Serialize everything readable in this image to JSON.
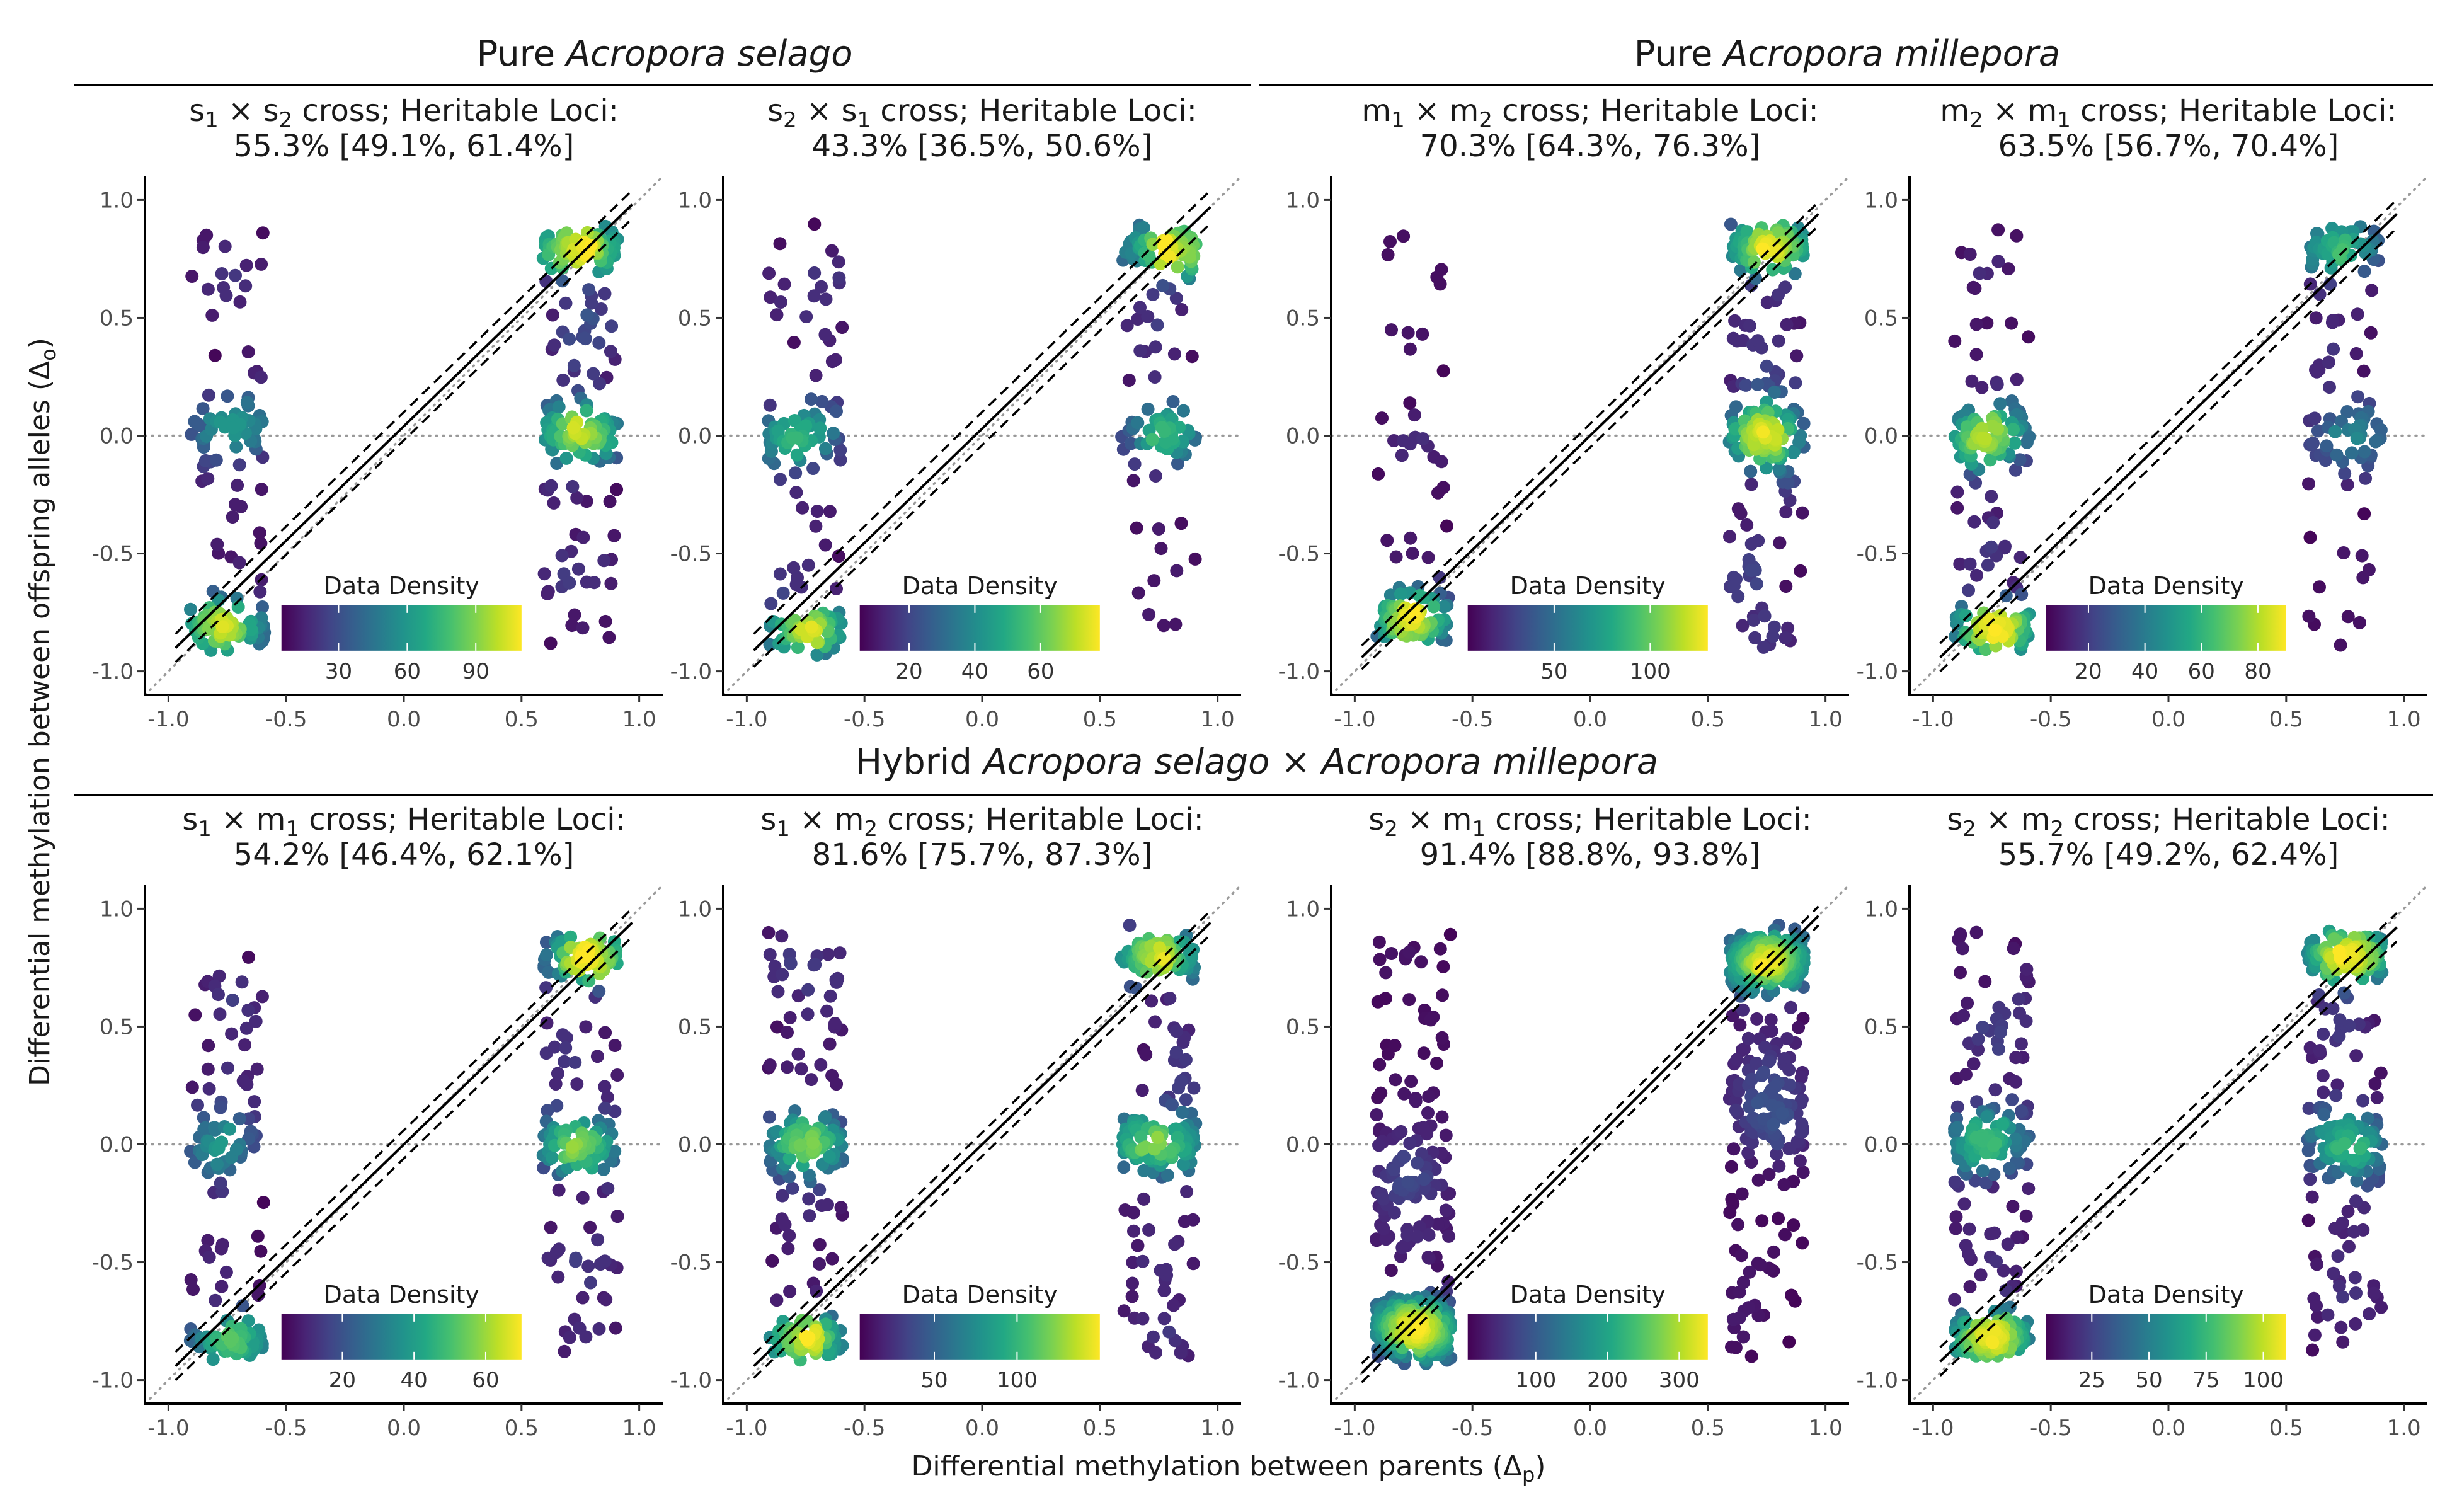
{
  "figure": {
    "group_titles": [
      {
        "prefix": "Pure ",
        "italic": "Acropora selago",
        "suffix": ""
      },
      {
        "prefix": "Pure ",
        "italic": "Acropora millepora",
        "suffix": ""
      },
      {
        "prefix": "Hybrid ",
        "italic": "Acropora selago",
        "middle": " × ",
        "italic2": "Acropora millepora"
      }
    ],
    "xlabel": {
      "main": "Differential methylation between parents (Δ",
      "sub": "p",
      "close": ")"
    },
    "ylabel": {
      "main": "Differential methylation between offspring alleles (Δ",
      "sub": "o",
      "close": ")"
    },
    "legend_title": "Data Density",
    "colormap": "viridis",
    "colors": {
      "line": "#000000",
      "reference": "#9a9a9a",
      "axis": "#000000",
      "text": "#1a1a1a"
    }
  },
  "chart_data": [
    {
      "type": "scatter",
      "title_line1": {
        "a": "s",
        "a_sub": "1",
        "b": "s",
        "b_sub": "2",
        "rest": " cross; Heritable Loci:"
      },
      "title_line2": "55.3% [49.1%, 61.4%]",
      "xlim": [
        -1.1,
        1.1
      ],
      "ylim": [
        -1.1,
        1.1
      ],
      "x_ticks": [
        -1.0,
        -0.5,
        0.0,
        0.5,
        1.0
      ],
      "y_ticks": [
        -1.0,
        -0.5,
        0.0,
        0.5,
        1.0
      ],
      "fit": {
        "slope": 0.97,
        "intercept": 0.04,
        "ci_offset": 0.06
      },
      "density_range": [
        5,
        110
      ],
      "density_ticks": [
        "30",
        "60",
        "90"
      ],
      "density_tick_values": [
        30,
        60,
        90
      ],
      "clusters": {
        "left": {
          "x_center": -0.75,
          "x_spread": 0.22,
          "n": 160,
          "y_pattern": "mixed",
          "peak": "low"
        },
        "right": {
          "x_center": 0.75,
          "x_spread": 0.22,
          "n": 220,
          "y_pattern": "mixed",
          "peak": "high"
        }
      }
    },
    {
      "type": "scatter",
      "title_line1": {
        "a": "s",
        "a_sub": "2",
        "b": "s",
        "b_sub": "1",
        "rest": " cross; Heritable Loci:"
      },
      "title_line2": "43.3% [36.5%, 50.6%]",
      "xlim": [
        -1.1,
        1.1
      ],
      "ylim": [
        -1.1,
        1.1
      ],
      "x_ticks": [
        -1.0,
        -0.5,
        0.0,
        0.5,
        1.0
      ],
      "y_ticks": [
        -1.0,
        -0.5,
        0.0,
        0.5,
        1.0
      ],
      "fit": {
        "slope": 0.97,
        "intercept": 0.03,
        "ci_offset": 0.07
      },
      "density_range": [
        5,
        78
      ],
      "density_ticks": [
        "20",
        "40",
        "60"
      ],
      "density_tick_values": [
        20,
        40,
        60
      ],
      "clusters": {
        "left": {
          "x_center": -0.75,
          "x_spread": 0.22,
          "n": 150,
          "y_pattern": "mixed",
          "peak": "low"
        },
        "right": {
          "x_center": 0.75,
          "x_spread": 0.22,
          "n": 140,
          "y_pattern": "mixed",
          "peak": "high"
        }
      }
    },
    {
      "type": "scatter",
      "title_line1": {
        "a": "m",
        "a_sub": "1",
        "b": "m",
        "b_sub": "2",
        "rest": " cross; Heritable Loci:"
      },
      "title_line2": "70.3% [64.3%, 76.3%]",
      "xlim": [
        -1.1,
        1.1
      ],
      "ylim": [
        -1.1,
        1.1
      ],
      "x_ticks": [
        -1.0,
        -0.5,
        0.0,
        0.5,
        1.0
      ],
      "y_ticks": [
        -1.0,
        -0.5,
        0.0,
        0.5,
        1.0
      ],
      "fit": {
        "slope": 0.97,
        "intercept": 0.0,
        "ci_offset": 0.05
      },
      "density_range": [
        5,
        130
      ],
      "density_ticks": [
        "50",
        "100"
      ],
      "density_tick_values": [
        50,
        100
      ],
      "clusters": {
        "left": {
          "x_center": -0.75,
          "x_spread": 0.22,
          "n": 120,
          "y_pattern": "lowheavy",
          "peak": "low"
        },
        "right": {
          "x_center": 0.75,
          "x_spread": 0.22,
          "n": 260,
          "y_pattern": "mixed",
          "peak": "high"
        }
      }
    },
    {
      "type": "scatter",
      "title_line1": {
        "a": "m",
        "a_sub": "2",
        "b": "m",
        "b_sub": "1",
        "rest": " cross; Heritable Loci:"
      },
      "title_line2": "63.5% [56.7%, 70.4%]",
      "xlim": [
        -1.1,
        1.1
      ],
      "ylim": [
        -1.1,
        1.1
      ],
      "x_ticks": [
        -1.0,
        -0.5,
        0.0,
        0.5,
        1.0
      ],
      "y_ticks": [
        -1.0,
        -0.5,
        0.0,
        0.5,
        1.0
      ],
      "fit": {
        "slope": 0.97,
        "intercept": 0.0,
        "ci_offset": 0.06
      },
      "density_range": [
        5,
        90
      ],
      "density_ticks": [
        "20",
        "40",
        "60",
        "80"
      ],
      "density_tick_values": [
        20,
        40,
        60,
        80
      ],
      "clusters": {
        "left": {
          "x_center": -0.75,
          "x_spread": 0.22,
          "n": 200,
          "y_pattern": "mixed",
          "peak": "low"
        },
        "right": {
          "x_center": 0.75,
          "x_spread": 0.22,
          "n": 130,
          "y_pattern": "mixed",
          "peak": "high"
        }
      }
    },
    {
      "type": "scatter",
      "title_line1": {
        "a": "s",
        "a_sub": "1",
        "b": "m",
        "b_sub": "1",
        "rest": " cross; Heritable Loci:"
      },
      "title_line2": "54.2% [46.4%, 62.1%]",
      "xlim": [
        -1.1,
        1.1
      ],
      "ylim": [
        -1.1,
        1.1
      ],
      "x_ticks": [
        -1.0,
        -0.5,
        0.0,
        0.5,
        1.0
      ],
      "y_ticks": [
        -1.0,
        -0.5,
        0.0,
        0.5,
        1.0
      ],
      "fit": {
        "slope": 0.97,
        "intercept": 0.0,
        "ci_offset": 0.06
      },
      "density_range": [
        3,
        70
      ],
      "density_ticks": [
        "20",
        "40",
        "60"
      ],
      "density_tick_values": [
        20,
        40,
        60
      ],
      "clusters": {
        "left": {
          "x_center": -0.75,
          "x_spread": 0.22,
          "n": 150,
          "y_pattern": "mixed",
          "peak": "low"
        },
        "right": {
          "x_center": 0.75,
          "x_spread": 0.22,
          "n": 200,
          "y_pattern": "mixed",
          "peak": "high"
        }
      }
    },
    {
      "type": "scatter",
      "title_line1": {
        "a": "s",
        "a_sub": "1",
        "b": "m",
        "b_sub": "2",
        "rest": " cross; Heritable Loci:"
      },
      "title_line2": "81.6% [75.7%, 87.3%]",
      "xlim": [
        -1.1,
        1.1
      ],
      "ylim": [
        -1.1,
        1.1
      ],
      "x_ticks": [
        -1.0,
        -0.5,
        0.0,
        0.5,
        1.0
      ],
      "y_ticks": [
        -1.0,
        -0.5,
        0.0,
        0.5,
        1.0
      ],
      "fit": {
        "slope": 0.97,
        "intercept": 0.0,
        "ci_offset": 0.05
      },
      "density_range": [
        5,
        150
      ],
      "density_ticks": [
        "50",
        "100"
      ],
      "density_tick_values": [
        50,
        100
      ],
      "clusters": {
        "left": {
          "x_center": -0.75,
          "x_spread": 0.22,
          "n": 220,
          "y_pattern": "mixed",
          "peak": "low"
        },
        "right": {
          "x_center": 0.75,
          "x_spread": 0.22,
          "n": 230,
          "y_pattern": "mixed",
          "peak": "high"
        }
      }
    },
    {
      "type": "scatter",
      "title_line1": {
        "a": "s",
        "a_sub": "2",
        "b": "m",
        "b_sub": "1",
        "rest": " cross; Heritable Loci:"
      },
      "title_line2": "91.4% [88.8%, 93.8%]",
      "xlim": [
        -1.1,
        1.1
      ],
      "ylim": [
        -1.1,
        1.1
      ],
      "x_ticks": [
        -1.0,
        -0.5,
        0.0,
        0.5,
        1.0
      ],
      "y_ticks": [
        -1.0,
        -0.5,
        0.0,
        0.5,
        1.0
      ],
      "fit": {
        "slope": 1.0,
        "intercept": 0.0,
        "ci_offset": 0.04
      },
      "density_range": [
        5,
        340
      ],
      "density_ticks": [
        "100",
        "200",
        "300"
      ],
      "density_tick_values": [
        100,
        200,
        300
      ],
      "clusters": {
        "left": {
          "x_center": -0.75,
          "x_spread": 0.22,
          "n": 380,
          "y_pattern": "lowheavy",
          "peak": "low"
        },
        "right": {
          "x_center": 0.75,
          "x_spread": 0.22,
          "n": 380,
          "y_pattern": "highheavy",
          "peak": "high"
        }
      }
    },
    {
      "type": "scatter",
      "title_line1": {
        "a": "s",
        "a_sub": "2",
        "b": "m",
        "b_sub": "2",
        "rest": " cross; Heritable Loci:"
      },
      "title_line2": "55.7% [49.2%, 62.4%]",
      "xlim": [
        -1.1,
        1.1
      ],
      "ylim": [
        -1.1,
        1.1
      ],
      "x_ticks": [
        -1.0,
        -0.5,
        0.0,
        0.5,
        1.0
      ],
      "y_ticks": [
        -1.0,
        -0.5,
        0.0,
        0.5,
        1.0
      ],
      "fit": {
        "slope": 0.95,
        "intercept": 0.0,
        "ci_offset": 0.06
      },
      "density_range": [
        5,
        110
      ],
      "density_ticks": [
        "25",
        "50",
        "75",
        "100"
      ],
      "density_tick_values": [
        25,
        50,
        75,
        100
      ],
      "clusters": {
        "left": {
          "x_center": -0.75,
          "x_spread": 0.22,
          "n": 260,
          "y_pattern": "mixed",
          "peak": "low"
        },
        "right": {
          "x_center": 0.75,
          "x_spread": 0.22,
          "n": 260,
          "y_pattern": "mixed",
          "peak": "high"
        }
      }
    }
  ]
}
